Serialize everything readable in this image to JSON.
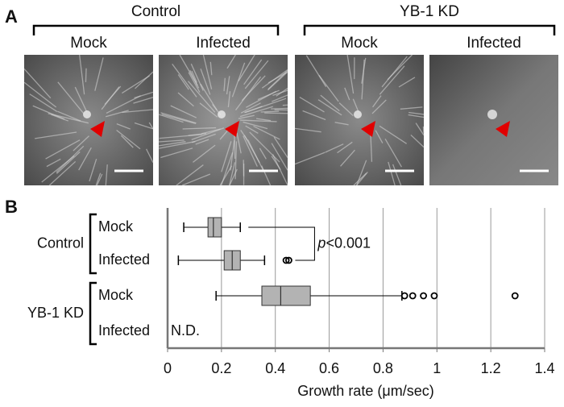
{
  "panel_a": {
    "label": "A",
    "groups": [
      {
        "name": "Control",
        "conditions": [
          "Mock",
          "Infected"
        ]
      },
      {
        "name": "YB-1 KD",
        "conditions": [
          "Mock",
          "Infected"
        ]
      }
    ]
  },
  "chart_data": {
    "type": "box",
    "panel_label": "B",
    "groups": [
      "Control",
      "YB-1 KD"
    ],
    "categories": [
      "Mock",
      "Infected",
      "Mock",
      "Infected"
    ],
    "boxes": [
      {
        "min": 0.06,
        "q1": 0.15,
        "median": 0.17,
        "q3": 0.2,
        "max": 0.27,
        "outliers": []
      },
      {
        "min": 0.04,
        "q1": 0.21,
        "median": 0.24,
        "q3": 0.27,
        "max": 0.36,
        "outliers": [
          0.44,
          0.45
        ]
      },
      {
        "min": 0.18,
        "q1": 0.35,
        "median": 0.42,
        "q3": 0.53,
        "max": 0.87,
        "outliers": [
          0.88,
          0.91,
          0.95,
          0.99,
          1.29
        ]
      },
      null
    ],
    "color": "#b3b3b3",
    "x_label": "Growth rate  (μm/sec)",
    "xlim": [
      0,
      1.4
    ],
    "xticks": [
      0,
      0.2,
      0.4,
      0.6,
      0.8,
      1,
      1.2,
      1.4
    ],
    "grid": true,
    "p_annotation": [
      "p",
      "<0.001"
    ],
    "missing_label": "N.D."
  }
}
